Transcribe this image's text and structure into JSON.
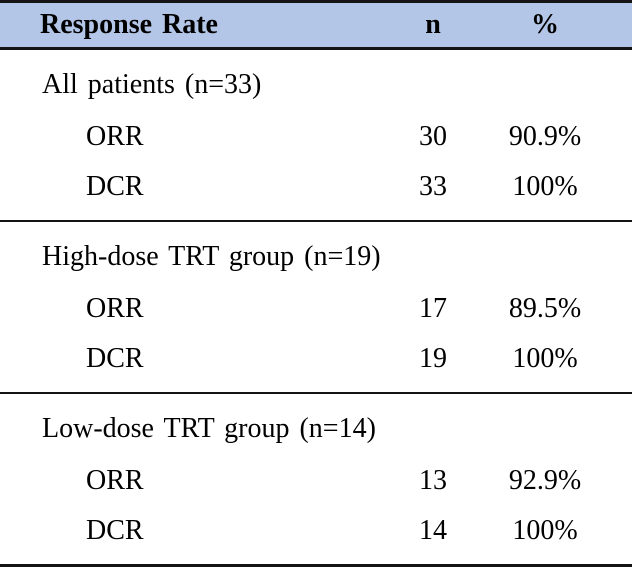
{
  "table": {
    "header": {
      "col1": "Response Rate",
      "col2": "n",
      "col3": "%"
    },
    "header_bg": "#b4c6e7",
    "rule_color": "#141414",
    "sections": [
      {
        "title": "All patients (n=33)",
        "rows": [
          {
            "label": "ORR",
            "n": "30",
            "pct": "90.9%"
          },
          {
            "label": "DCR",
            "n": "33",
            "pct": "100%"
          }
        ]
      },
      {
        "title": "High-dose TRT group (n=19)",
        "rows": [
          {
            "label": "ORR",
            "n": "17",
            "pct": "89.5%"
          },
          {
            "label": "DCR",
            "n": "19",
            "pct": "100%"
          }
        ]
      },
      {
        "title": "Low-dose TRT group (n=14)",
        "rows": [
          {
            "label": "ORR",
            "n": "13",
            "pct": "92.9%"
          },
          {
            "label": "DCR",
            "n": "14",
            "pct": "100%"
          }
        ]
      }
    ]
  },
  "chart_data": {
    "type": "table",
    "title": "Response Rate",
    "columns": [
      "Response Rate",
      "n",
      "%"
    ],
    "rows": [
      [
        "All patients (n=33)",
        "",
        ""
      ],
      [
        "ORR",
        "30",
        "90.9%"
      ],
      [
        "DCR",
        "33",
        "100%"
      ],
      [
        "High-dose TRT group (n=19)",
        "",
        ""
      ],
      [
        "ORR",
        "17",
        "89.5%"
      ],
      [
        "DCR",
        "19",
        "100%"
      ],
      [
        "Low-dose TRT group (n=14)",
        "",
        ""
      ],
      [
        "ORR",
        "13",
        "92.9%"
      ],
      [
        "DCR",
        "14",
        "100%"
      ]
    ]
  }
}
